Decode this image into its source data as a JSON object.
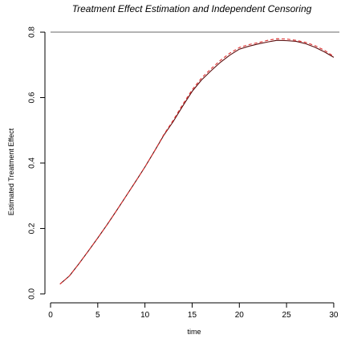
{
  "chart_data": {
    "type": "line",
    "title": "Treatment Effect Estimation and Independent Censoring",
    "xlabel": "time",
    "ylabel": "Estimated Treatment Effect",
    "xlim": [
      0,
      30.6
    ],
    "ylim": [
      -0.01,
      0.805
    ],
    "x_ticks": [
      0,
      5,
      10,
      15,
      20,
      25,
      30
    ],
    "y_ticks": [
      0.0,
      0.2,
      0.4,
      0.6,
      0.8
    ],
    "x_tick_labels": [
      "0",
      "5",
      "10",
      "15",
      "20",
      "25",
      "30"
    ],
    "y_tick_labels": [
      "0.0",
      "0.2",
      "0.4",
      "0.6",
      "0.8"
    ],
    "grid": false,
    "legend": "none",
    "reference_line": {
      "y": 0.8,
      "color": "#888888"
    },
    "x": [
      1,
      2,
      3,
      4,
      5,
      6,
      7,
      8,
      9,
      10,
      11,
      12,
      13,
      14,
      15,
      16,
      17,
      18,
      19,
      20,
      21,
      22,
      23,
      24,
      25,
      26,
      27,
      28,
      29,
      30
    ],
    "series": [
      {
        "style": "solid",
        "color": "#5a0a0a",
        "values": [
          0.03,
          0.055,
          0.092,
          0.131,
          0.171,
          0.212,
          0.255,
          0.299,
          0.343,
          0.388,
          0.436,
          0.485,
          0.527,
          0.574,
          0.619,
          0.654,
          0.682,
          0.708,
          0.73,
          0.748,
          0.757,
          0.764,
          0.77,
          0.775,
          0.774,
          0.772,
          0.765,
          0.754,
          0.74,
          0.723
        ]
      },
      {
        "style": "dashed",
        "color": "#e03030",
        "values": [
          0.03,
          0.055,
          0.092,
          0.131,
          0.171,
          0.212,
          0.255,
          0.299,
          0.343,
          0.388,
          0.436,
          0.487,
          0.531,
          0.579,
          0.624,
          0.66,
          0.688,
          0.714,
          0.736,
          0.753,
          0.762,
          0.768,
          0.775,
          0.78,
          0.779,
          0.775,
          0.769,
          0.759,
          0.745,
          0.726
        ]
      }
    ]
  }
}
